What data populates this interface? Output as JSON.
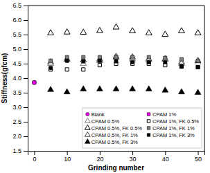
{
  "chart_data": {
    "type": "scatter",
    "x_label": "Grinding number",
    "y_label": "Stiffness(gfcm)",
    "xlim": [
      -2,
      52
    ],
    "ylim": [
      1.5,
      6.5
    ],
    "xticks": [
      0,
      10,
      20,
      30,
      40,
      50
    ],
    "yticks": [
      1.5,
      {
        "value": 2,
        "label": "2.0"
      },
      2.5,
      {
        "value": 3,
        "label": "3.0"
      },
      3.5,
      {
        "value": 4,
        "label": "4.0"
      },
      4.5,
      {
        "value": 5,
        "label": "5.0"
      },
      5.5,
      {
        "value": 6,
        "label": "6.0"
      },
      6.5
    ],
    "grid": false,
    "legend": "lower right",
    "series": [
      {
        "name": "Blank",
        "marker": "circle",
        "color": "#FF00FF",
        "x": [
          0
        ],
        "values": [
          3.85
        ]
      },
      {
        "name": "CPAM 0.5%",
        "marker": "triangle-open",
        "color": "#808080",
        "x": [
          5,
          10,
          15,
          20,
          25,
          30,
          35,
          40,
          45,
          50
        ],
        "values": [
          4.5,
          4.65,
          4.5,
          4.6,
          4.75,
          4.65,
          4.65,
          4.65,
          4.5,
          4.55
        ]
      },
      {
        "name": "CPAM 0.5%, FK 0.5%",
        "marker": "triangle-open",
        "color": "#000000",
        "x": [
          5,
          10,
          15,
          20,
          25,
          30,
          35,
          40,
          45,
          50
        ],
        "values": [
          5.55,
          5.58,
          5.57,
          5.63,
          5.75,
          5.62,
          5.55,
          5.5,
          5.62,
          5.55
        ]
      },
      {
        "name": "CPAM 0.5%, FK 1%",
        "marker": "triangle-open",
        "color": "#404040",
        "x": [
          5,
          10,
          15,
          20,
          25,
          30,
          35,
          40,
          45,
          50
        ],
        "values": [
          4.55,
          4.65,
          4.62,
          4.65,
          4.72,
          4.72,
          4.65,
          4.65,
          4.55,
          4.6
        ]
      },
      {
        "name": "CPAM 0.5%, FK 3%",
        "marker": "triangle",
        "color": "#000000",
        "x": [
          5,
          10,
          15,
          20,
          25,
          30,
          35,
          40,
          45,
          50
        ],
        "values": [
          3.6,
          3.52,
          3.62,
          3.62,
          3.62,
          3.62,
          3.62,
          3.58,
          3.52,
          3.5
        ]
      },
      {
        "name": "CPAM 1%",
        "marker": "square",
        "color": "#FF00FF",
        "x": [
          0
        ],
        "values": [
          3.85
        ]
      },
      {
        "name": "CPAM 1%, FK 0.5%",
        "marker": "square-open",
        "color": "#000000",
        "x": [
          5,
          10,
          15,
          20,
          25,
          30,
          35,
          40,
          45,
          50
        ],
        "values": [
          4.3,
          4.3,
          4.3,
          4.45,
          4.5,
          4.5,
          4.5,
          4.45,
          4.4,
          4.38
        ]
      },
      {
        "name": "CPAM 1%, FK 1%",
        "marker": "square",
        "color": "#808080",
        "x": [
          5,
          10,
          15,
          20,
          25,
          30,
          35,
          40,
          45,
          50
        ],
        "values": [
          4.6,
          4.72,
          4.72,
          4.72,
          4.72,
          4.72,
          4.72,
          4.7,
          4.65,
          4.6
        ]
      },
      {
        "name": "CPAM 1%, FK 3%",
        "marker": "square",
        "color": "#000000",
        "x": [
          5,
          10,
          15,
          20,
          25,
          30,
          35,
          40,
          45,
          50
        ],
        "values": [
          4.35,
          4.6,
          4.58,
          4.6,
          4.58,
          4.55,
          4.55,
          4.55,
          4.4,
          4.38
        ]
      }
    ]
  }
}
